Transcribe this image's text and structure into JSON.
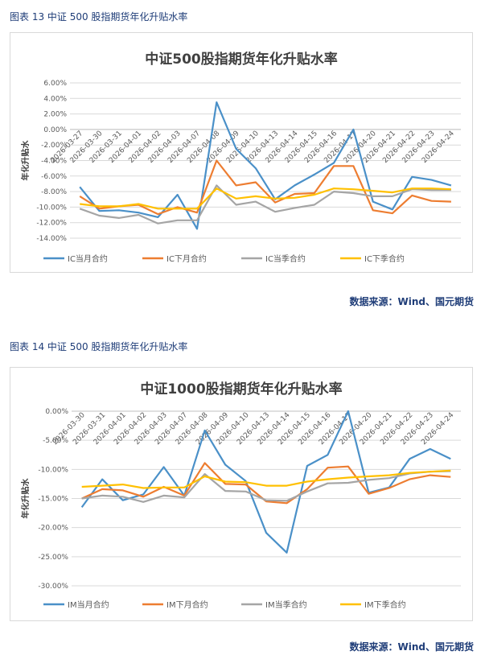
{
  "figures": [
    {
      "caption": "图表 13  中证 500 股指期货年化升贴水率",
      "source": "数据来源：Wind、国元期货"
    },
    {
      "caption": "图表 14  中证 500 股指期货年化升贴水率",
      "source": "数据来源：Wind、国元期货"
    }
  ],
  "chart_data": [
    {
      "type": "line",
      "title": "中证500股指期货年化升贴水率",
      "ylabel": "年化升贴水",
      "xlabel": "",
      "ylim": [
        -0.14,
        0.06
      ],
      "yticks": [
        0.06,
        0.04,
        0.02,
        0.0,
        -0.02,
        -0.04,
        -0.06,
        -0.08,
        -0.1,
        -0.12,
        -0.14
      ],
      "ytick_labels": [
        "6.00%",
        "4.00%",
        "2.00%",
        "0.00%",
        "-2.00%",
        "-4.00%",
        "-6.00%",
        "-8.00%",
        "-10.00%",
        "-12.00%",
        "-14.00%"
      ],
      "categories": [
        "2026-03-27",
        "2026-03-30",
        "2026-03-31",
        "2026-04-01",
        "2026-04-02",
        "2026-04-03",
        "2026-04-07",
        "2026-04-08",
        "2026-04-09",
        "2026-04-10",
        "2026-04-13",
        "2026-04-14",
        "2026-04-15",
        "2026-04-16",
        "2026-04-17",
        "2026-04-20",
        "2026-04-21",
        "2026-04-22",
        "2026-04-23",
        "2026-04-24"
      ],
      "series": [
        {
          "name": "IC当月合约",
          "color": "#4a90c8",
          "values": [
            -0.074,
            -0.105,
            -0.104,
            -0.107,
            -0.113,
            -0.084,
            -0.128,
            0.035,
            -0.025,
            -0.05,
            -0.09,
            -0.072,
            -0.058,
            -0.043,
            0.0,
            -0.093,
            -0.103,
            -0.061,
            -0.065,
            -0.072
          ]
        },
        {
          "name": "IC下月合约",
          "color": "#ed7d31",
          "values": [
            -0.086,
            -0.102,
            -0.099,
            -0.097,
            -0.109,
            -0.1,
            -0.107,
            -0.04,
            -0.072,
            -0.068,
            -0.094,
            -0.083,
            -0.082,
            -0.047,
            -0.047,
            -0.104,
            -0.108,
            -0.085,
            -0.092,
            -0.093
          ]
        },
        {
          "name": "IC当季合约",
          "color": "#a5a5a5",
          "values": [
            -0.102,
            -0.111,
            -0.114,
            -0.11,
            -0.121,
            -0.117,
            -0.117,
            -0.072,
            -0.097,
            -0.093,
            -0.106,
            -0.101,
            -0.097,
            -0.08,
            -0.082,
            -0.086,
            -0.086,
            -0.077,
            -0.078,
            -0.078
          ]
        },
        {
          "name": "IC下季合约",
          "color": "#ffc000",
          "values": [
            -0.096,
            -0.099,
            -0.099,
            -0.096,
            -0.102,
            -0.102,
            -0.102,
            -0.076,
            -0.089,
            -0.086,
            -0.089,
            -0.088,
            -0.084,
            -0.076,
            -0.077,
            -0.079,
            -0.081,
            -0.076,
            -0.076,
            -0.077
          ]
        }
      ],
      "legend": "bottom",
      "grid": true
    },
    {
      "type": "line",
      "title": "中证1000股指期货年化升贴水率",
      "ylabel": "年化升贴水",
      "xlabel": "",
      "ylim": [
        -0.3,
        0.0
      ],
      "yticks": [
        0.0,
        -0.05,
        -0.1,
        -0.15,
        -0.2,
        -0.25,
        -0.3
      ],
      "ytick_labels": [
        "0.00%",
        "-5.00%",
        "-10.00%",
        "-15.00%",
        "-20.00%",
        "-25.00%",
        "-30.00%"
      ],
      "categories": [
        "2026-03-30",
        "2026-03-31",
        "2026-04-01",
        "2026-04-02",
        "2026-04-03",
        "2026-04-07",
        "2026-04-08",
        "2026-04-09",
        "2026-04-10",
        "2026-04-13",
        "2026-04-14",
        "2026-04-15",
        "2026-04-16",
        "2026-04-17",
        "2026-04-20",
        "2026-04-21",
        "2026-04-22",
        "2026-04-23",
        "2026-04-24"
      ],
      "series": [
        {
          "name": "IM当月合约",
          "color": "#4a90c8",
          "values": [
            -0.165,
            -0.117,
            -0.153,
            -0.143,
            -0.096,
            -0.145,
            -0.033,
            -0.092,
            -0.12,
            -0.209,
            -0.243,
            -0.094,
            -0.075,
            0.0,
            -0.14,
            -0.131,
            -0.082,
            -0.065,
            -0.082
          ]
        },
        {
          "name": "IM下月合约",
          "color": "#ed7d31",
          "values": [
            -0.15,
            -0.134,
            -0.136,
            -0.147,
            -0.13,
            -0.145,
            -0.089,
            -0.125,
            -0.126,
            -0.155,
            -0.158,
            -0.134,
            -0.097,
            -0.095,
            -0.142,
            -0.132,
            -0.117,
            -0.11,
            -0.113
          ]
        },
        {
          "name": "IM当季合约",
          "color": "#a5a5a5",
          "values": [
            -0.15,
            -0.145,
            -0.147,
            -0.156,
            -0.145,
            -0.148,
            -0.108,
            -0.137,
            -0.138,
            -0.153,
            -0.154,
            -0.138,
            -0.124,
            -0.123,
            -0.118,
            -0.115,
            -0.107,
            -0.104,
            -0.103
          ]
        },
        {
          "name": "IM下季合约",
          "color": "#ffc000",
          "values": [
            -0.13,
            -0.128,
            -0.126,
            -0.132,
            -0.131,
            -0.131,
            -0.112,
            -0.121,
            -0.122,
            -0.128,
            -0.128,
            -0.121,
            -0.117,
            -0.114,
            -0.112,
            -0.11,
            -0.106,
            -0.104,
            -0.102
          ]
        }
      ],
      "legend": "bottom",
      "grid": true
    }
  ]
}
